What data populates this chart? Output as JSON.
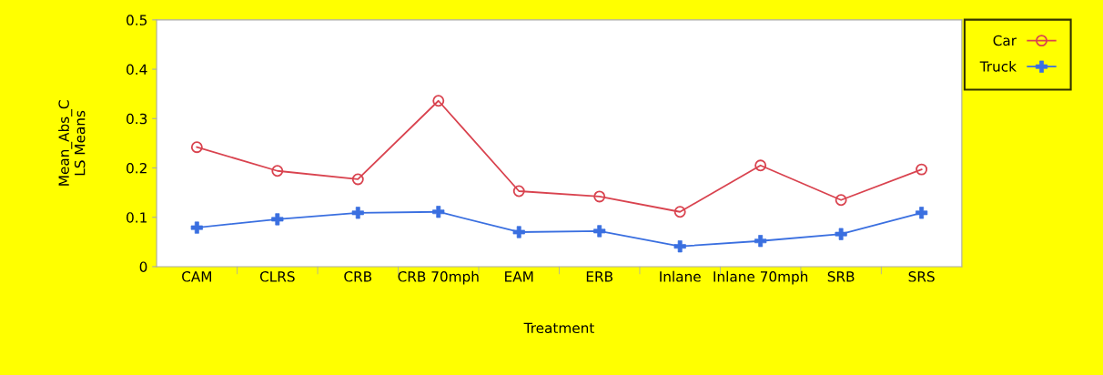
{
  "chart_data": {
    "type": "line",
    "xlabel": "Treatment",
    "ylabel": "Mean_Abs_C\nLS Means",
    "categories": [
      "CAM",
      "CLRS",
      "CRB",
      "CRB 70mph",
      "EAM",
      "ERB",
      "Inlane",
      "Inlane 70mph",
      "SRB",
      "SRS"
    ],
    "series": [
      {
        "name": "Car",
        "color": "#d9434f",
        "marker": "circle",
        "values": [
          0.242,
          0.194,
          0.177,
          0.336,
          0.153,
          0.142,
          0.111,
          0.205,
          0.135,
          0.197
        ]
      },
      {
        "name": "Truck",
        "color": "#3a6fe0",
        "marker": "cross",
        "values": [
          0.079,
          0.096,
          0.109,
          0.111,
          0.07,
          0.072,
          0.041,
          0.052,
          0.066,
          0.109
        ]
      }
    ],
    "ylim": [
      0,
      0.5
    ],
    "yticks": [
      0,
      0.1,
      0.2,
      0.3,
      0.4,
      0.5
    ],
    "grid": false,
    "legend": "right",
    "line_style": "solid"
  }
}
